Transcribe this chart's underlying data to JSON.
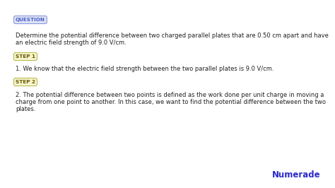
{
  "bg_color": "#ffffff",
  "question_label": "QUESTION",
  "question_label_color": "#4a5cc7",
  "question_label_bg": "#dde3f5",
  "question_label_border": "#8899dd",
  "question_text_line1": "Determine the potential difference between two charged parallel plates that are 0.50 cm apart and have",
  "question_text_line2": "an electric field strength of 9.0 V/cm.",
  "step1_label": "STEP 1",
  "step1_label_color": "#665500",
  "step1_label_bg": "#f5f5cc",
  "step1_label_border": "#bbbb55",
  "step1_text": "1. We know that the electric field strength between the two parallel plates is 9.0 V/cm.",
  "step2_label": "STEP 2",
  "step2_label_color": "#665500",
  "step2_label_bg": "#f5f5cc",
  "step2_label_border": "#bbbb55",
  "step2_text_line1": "2. The potential difference between two points is defined as the work done per unit charge in moving a",
  "step2_text_line2": "charge from one point to another. In this case, we want to find the potential difference between the two",
  "step2_text_line3": "plates.",
  "numerade_text": "Numerade",
  "numerade_color": "#2a2acc",
  "body_text_color": "#222222",
  "body_fontsize": 6.0,
  "label_fontsize": 5.2
}
